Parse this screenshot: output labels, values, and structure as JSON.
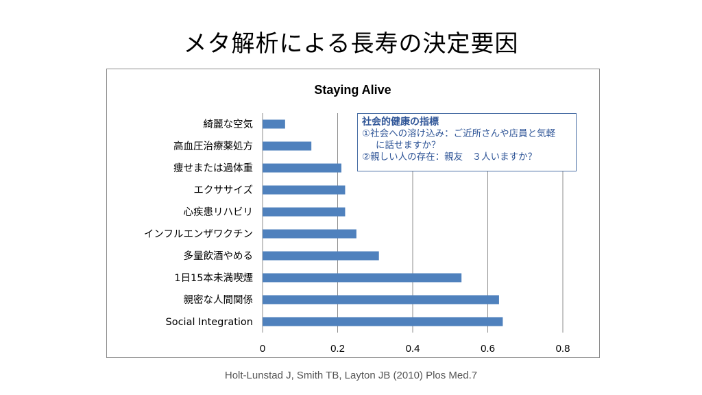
{
  "slide": {
    "title": "メタ解析による長寿の決定要因",
    "citation": "Holt-Lunstad J, Smith TB, Layton JB (2010) Plos Med.7"
  },
  "annotation": {
    "title": "社会的健康の指標",
    "line1": "①社会への溶け込み：ご近所さんや店員と気軽",
    "line2": "に話せますか？",
    "line3": "②親しい人の存在：親友　３人いますか？"
  },
  "chart_data": {
    "type": "bar",
    "orientation": "horizontal",
    "title": "Staying Alive",
    "xlabel": "",
    "ylabel": "",
    "categories": [
      "綺麗な空気",
      "高血圧治療薬処方",
      "痩せまたは過体重",
      "エクササイズ",
      "心疾患リハビリ",
      "インフルエンザワクチン",
      "多量飲酒やめる",
      "1日15本未満喫煙",
      "親密な人間関係",
      "Social Integration"
    ],
    "values": [
      0.06,
      0.13,
      0.21,
      0.22,
      0.22,
      0.25,
      0.31,
      0.53,
      0.63,
      0.64
    ],
    "xlim": [
      0,
      0.8
    ],
    "ticks": [
      "0",
      "0.2",
      "0.4",
      "0.6",
      "0.8"
    ],
    "tick_values": [
      0,
      0.2,
      0.4,
      0.6,
      0.8
    ],
    "grid": true,
    "legend": "none",
    "bar_color": "#4f81bd"
  }
}
